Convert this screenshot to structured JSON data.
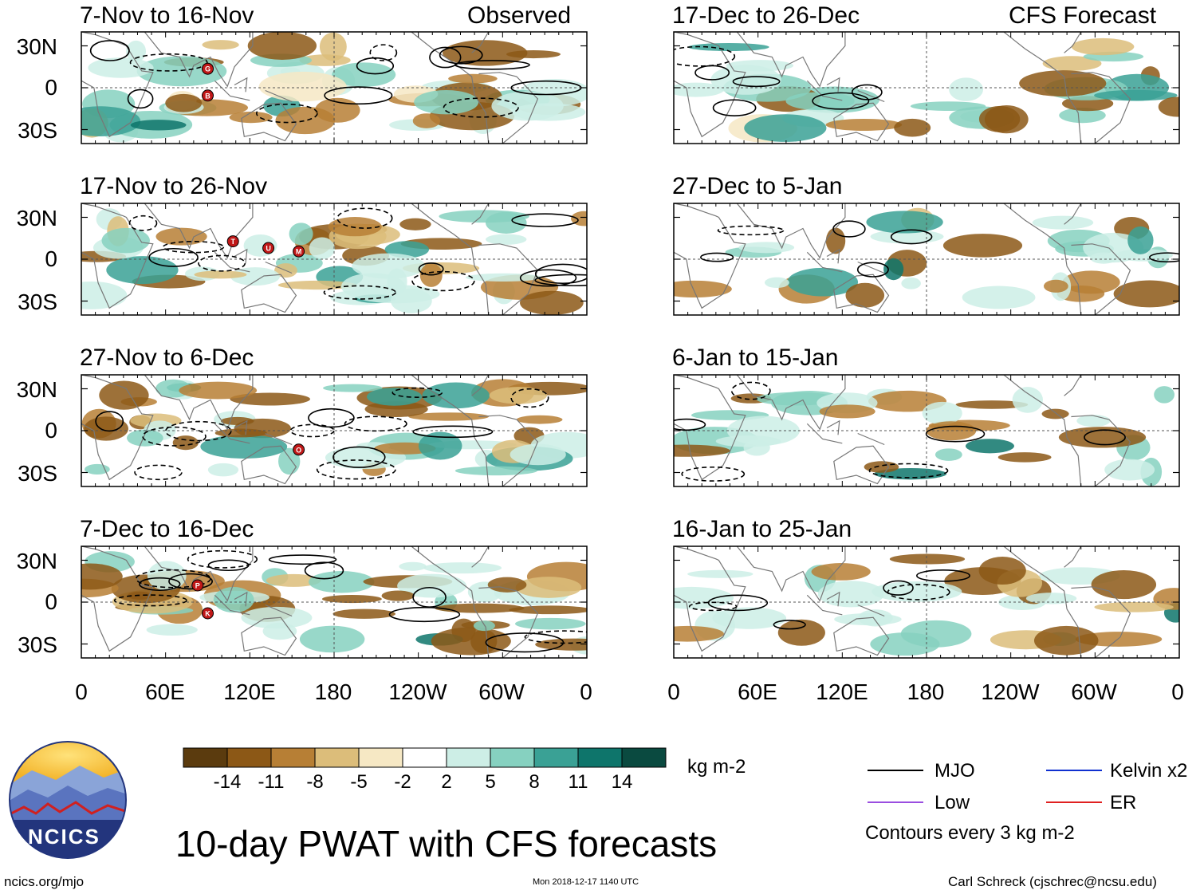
{
  "panel_titles": {
    "observed_label": "Observed",
    "forecast_label": "CFS Forecast",
    "left": [
      "7-Nov to 16-Nov",
      "17-Nov to 26-Nov",
      "27-Nov to 6-Dec",
      "7-Dec to 16-Dec"
    ],
    "right": [
      "17-Dec to 26-Dec",
      "27-Dec to 5-Jan",
      "6-Jan to 15-Jan",
      "16-Jan to 25-Jan"
    ]
  },
  "axes": {
    "lat_labels": [
      "30N",
      "0",
      "30S"
    ],
    "lon_labels": [
      "0",
      "60E",
      "120E",
      "180",
      "120W",
      "60W",
      "0"
    ]
  },
  "storm_markers": [
    {
      "panel": 0,
      "letter": "G"
    },
    {
      "panel": 0,
      "letter": "B"
    },
    {
      "panel": 1,
      "letter": "T"
    },
    {
      "panel": 1,
      "letter": "U"
    },
    {
      "panel": 1,
      "letter": "M"
    },
    {
      "panel": 2,
      "letter": "O"
    },
    {
      "panel": 3,
      "letter": "P"
    },
    {
      "panel": 3,
      "letter": "K"
    }
  ],
  "colorbar": {
    "ticks": [
      "-14",
      "-11",
      "-8",
      "-5",
      "-2",
      "2",
      "5",
      "8",
      "11",
      "14"
    ],
    "colors": [
      "#5b3b0e",
      "#8c5816",
      "#b77f35",
      "#dcbd7a",
      "#f6e8c4",
      "#ffffff",
      "#cdeee6",
      "#86d1c0",
      "#3aa195",
      "#0e756b",
      "#0a4a40"
    ],
    "units": "kg m-2"
  },
  "legend": {
    "items": [
      {
        "label": "MJO",
        "color": "#000000"
      },
      {
        "label": "Kelvin x2",
        "color": "#1030d0"
      },
      {
        "label": "Low",
        "color": "#9a4ee0"
      },
      {
        "label": "ER",
        "color": "#e02020"
      }
    ],
    "contour_note": "Contours every 3 kg m-2"
  },
  "logo_text": "NCICS",
  "main_title": "10-day PWAT with CFS forecasts",
  "footer": {
    "url": "ncics.org/mjo",
    "timestamp": "Mon 2018-12-17 1140 UTC",
    "author": "Carl Schreck (cjschrec@ncsu.edu)"
  }
}
